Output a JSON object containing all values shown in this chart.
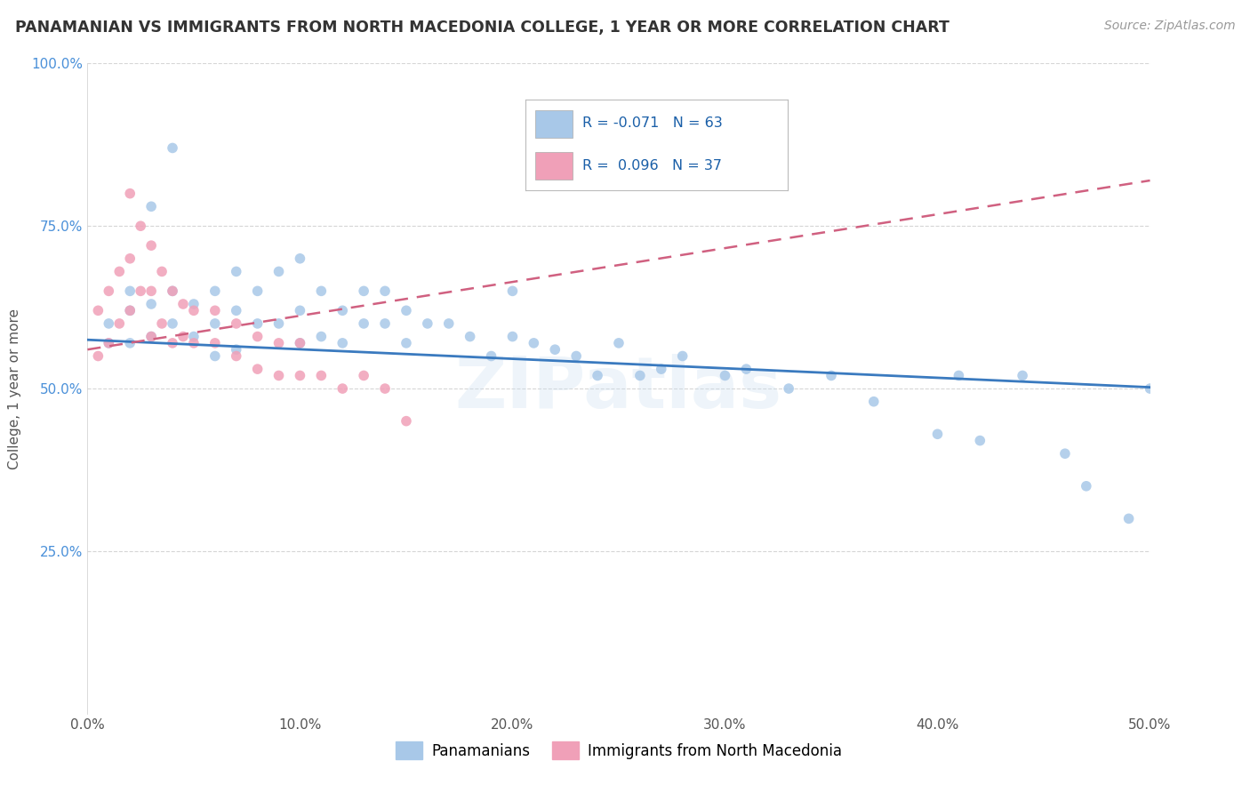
{
  "title": "PANAMANIAN VS IMMIGRANTS FROM NORTH MACEDONIA COLLEGE, 1 YEAR OR MORE CORRELATION CHART",
  "source_text": "Source: ZipAtlas.com",
  "ylabel": "College, 1 year or more",
  "xlim": [
    0.0,
    0.5
  ],
  "ylim": [
    0.0,
    1.0
  ],
  "xtick_labels": [
    "0.0%",
    "10.0%",
    "20.0%",
    "30.0%",
    "40.0%",
    "50.0%"
  ],
  "xtick_vals": [
    0.0,
    0.1,
    0.2,
    0.3,
    0.4,
    0.5
  ],
  "ytick_labels": [
    "25.0%",
    "50.0%",
    "75.0%",
    "100.0%"
  ],
  "ytick_vals": [
    0.25,
    0.5,
    0.75,
    1.0
  ],
  "blue_R": -0.071,
  "blue_N": 63,
  "pink_R": 0.096,
  "pink_N": 37,
  "blue_color": "#a8c8e8",
  "pink_color": "#f0a0b8",
  "blue_line_color": "#3a7abf",
  "pink_line_color": "#d06080",
  "watermark": "ZIPatlas",
  "blue_scatter_x": [
    0.01,
    0.01,
    0.02,
    0.02,
    0.02,
    0.03,
    0.03,
    0.03,
    0.04,
    0.04,
    0.04,
    0.05,
    0.05,
    0.06,
    0.06,
    0.06,
    0.07,
    0.07,
    0.07,
    0.08,
    0.08,
    0.09,
    0.09,
    0.1,
    0.1,
    0.1,
    0.11,
    0.11,
    0.12,
    0.12,
    0.13,
    0.13,
    0.14,
    0.14,
    0.15,
    0.15,
    0.16,
    0.17,
    0.18,
    0.19,
    0.2,
    0.2,
    0.21,
    0.22,
    0.23,
    0.24,
    0.25,
    0.26,
    0.27,
    0.28,
    0.3,
    0.31,
    0.33,
    0.35,
    0.37,
    0.4,
    0.41,
    0.42,
    0.44,
    0.46,
    0.47,
    0.49,
    0.5
  ],
  "blue_scatter_y": [
    0.57,
    0.6,
    0.57,
    0.62,
    0.65,
    0.58,
    0.63,
    0.78,
    0.6,
    0.65,
    0.87,
    0.58,
    0.63,
    0.55,
    0.6,
    0.65,
    0.56,
    0.62,
    0.68,
    0.6,
    0.65,
    0.6,
    0.68,
    0.57,
    0.62,
    0.7,
    0.58,
    0.65,
    0.57,
    0.62,
    0.6,
    0.65,
    0.6,
    0.65,
    0.57,
    0.62,
    0.6,
    0.6,
    0.58,
    0.55,
    0.58,
    0.65,
    0.57,
    0.56,
    0.55,
    0.52,
    0.57,
    0.52,
    0.53,
    0.55,
    0.52,
    0.53,
    0.5,
    0.52,
    0.48,
    0.43,
    0.52,
    0.42,
    0.52,
    0.4,
    0.35,
    0.3,
    0.5
  ],
  "pink_scatter_x": [
    0.005,
    0.005,
    0.01,
    0.01,
    0.015,
    0.015,
    0.02,
    0.02,
    0.02,
    0.025,
    0.025,
    0.03,
    0.03,
    0.03,
    0.035,
    0.035,
    0.04,
    0.04,
    0.045,
    0.045,
    0.05,
    0.05,
    0.06,
    0.06,
    0.07,
    0.07,
    0.08,
    0.08,
    0.09,
    0.09,
    0.1,
    0.1,
    0.11,
    0.12,
    0.13,
    0.14,
    0.15
  ],
  "pink_scatter_y": [
    0.55,
    0.62,
    0.57,
    0.65,
    0.6,
    0.68,
    0.62,
    0.7,
    0.8,
    0.65,
    0.75,
    0.58,
    0.65,
    0.72,
    0.6,
    0.68,
    0.57,
    0.65,
    0.58,
    0.63,
    0.57,
    0.62,
    0.57,
    0.62,
    0.55,
    0.6,
    0.53,
    0.58,
    0.52,
    0.57,
    0.52,
    0.57,
    0.52,
    0.5,
    0.52,
    0.5,
    0.45
  ],
  "blue_line_x": [
    0.0,
    0.5
  ],
  "blue_line_y": [
    0.575,
    0.502
  ],
  "pink_line_x": [
    0.0,
    0.5
  ],
  "pink_line_y": [
    0.56,
    0.82
  ],
  "legend_label_blue": "Panamanians",
  "legend_label_pink": "Immigrants from North Macedonia",
  "grid_color": "#cccccc",
  "bg_color": "#ffffff"
}
